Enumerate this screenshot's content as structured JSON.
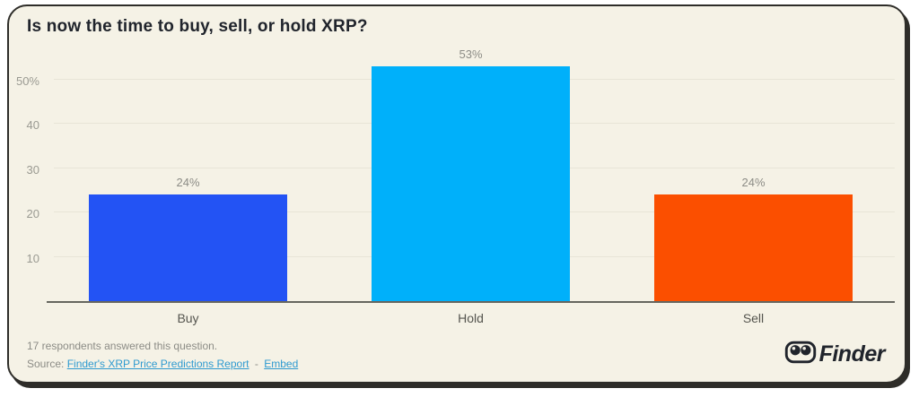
{
  "chart_data": {
    "type": "bar",
    "title": "Is now the time to buy, sell, or hold XRP?",
    "categories": [
      "Buy",
      "Hold",
      "Sell"
    ],
    "values": [
      24,
      53,
      24
    ],
    "value_labels": [
      "24%",
      "53%",
      "24%"
    ],
    "bar_colors": [
      "#2353f4",
      "#00b0fa",
      "#fb4f00"
    ],
    "xlabel": "",
    "ylabel": "",
    "ylim": [
      0,
      55
    ],
    "yticks": [
      {
        "value": 10,
        "label": "10"
      },
      {
        "value": 20,
        "label": "20"
      },
      {
        "value": 30,
        "label": "30"
      },
      {
        "value": 40,
        "label": "40"
      },
      {
        "value": 50,
        "label": "50%"
      }
    ],
    "grid": true,
    "legend": false
  },
  "footer": {
    "respondents_note": "17 respondents answered this question.",
    "source_prefix": "Source:",
    "source_link_label": "Finder's XRP Price Predictions Report",
    "link_separator": "-",
    "embed_link_label": "Embed",
    "brand_name": "Finder"
  },
  "colors": {
    "card_background": "#f5f2e6",
    "card_border": "#2e2d29",
    "title_text": "#20242c",
    "muted_text": "#8c8c86",
    "tick_text": "#9a9a92",
    "category_text": "#55554f",
    "link": "#2e9ad0",
    "gridline": "#e8e5d7",
    "axis_line": "#66665f"
  }
}
